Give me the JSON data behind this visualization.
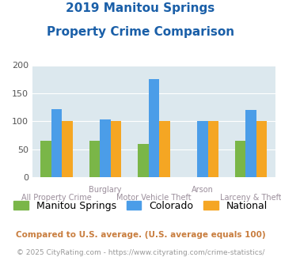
{
  "title_line1": "2019 Manitou Springs",
  "title_line2": "Property Crime Comparison",
  "categories": [
    "All Property Crime",
    "Burglary",
    "Motor Vehicle Theft",
    "Arson",
    "Larceny & Theft"
  ],
  "series": {
    "Manitou Springs": [
      65,
      65,
      60,
      null,
      65
    ],
    "Colorado": [
      122,
      103,
      175,
      100,
      120
    ],
    "National": [
      100,
      100,
      100,
      100,
      100
    ]
  },
  "colors": {
    "Manitou Springs": "#7ab648",
    "Colorado": "#4b9de8",
    "National": "#f5a623"
  },
  "ylim": [
    0,
    200
  ],
  "yticks": [
    0,
    50,
    100,
    150,
    200
  ],
  "plot_background": "#dce8ee",
  "title_color": "#1a5fa8",
  "xlabel_color": "#9b8e9b",
  "legend_fontsize": 9,
  "footnote1": "Compared to U.S. average. (U.S. average equals 100)",
  "footnote2": "© 2025 CityRating.com - https://www.cityrating.com/crime-statistics/",
  "footnote1_color": "#c87d3e",
  "footnote2_color": "#999999",
  "top_labels": [
    "",
    "Burglary",
    "",
    "Arson",
    ""
  ],
  "bottom_labels": [
    "All Property Crime",
    "",
    "Motor Vehicle Theft",
    "",
    "Larceny & Theft"
  ]
}
